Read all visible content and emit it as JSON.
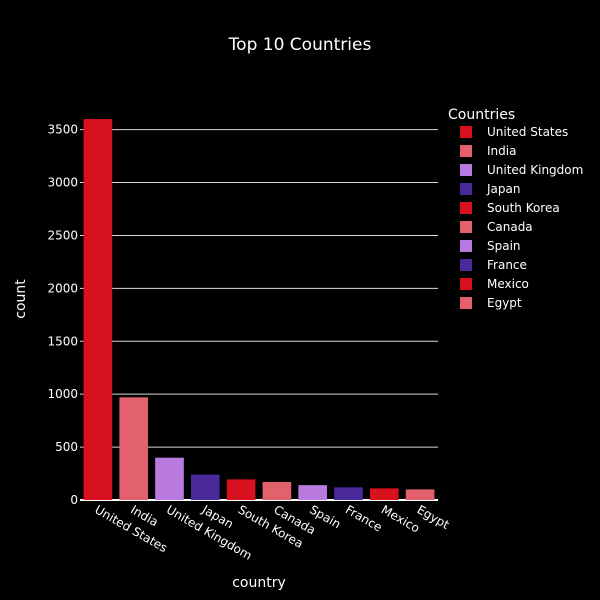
{
  "chart_data": {
    "type": "bar",
    "title": "Top 10 Countries",
    "xlabel": "country",
    "ylabel": "count",
    "categories": [
      "United States",
      "India",
      "United Kingdom",
      "Japan",
      "South Korea",
      "Canada",
      "Spain",
      "France",
      "Mexico",
      "Egypt"
    ],
    "values": [
      3600,
      970,
      400,
      240,
      195,
      170,
      140,
      120,
      110,
      100
    ],
    "ylim": [
      0,
      3780
    ],
    "yticks": [
      0,
      500,
      1000,
      1500,
      2000,
      2500,
      3000,
      3500
    ],
    "grid": true,
    "legend": {
      "title": "Countries",
      "placement": "top-right"
    },
    "colors": [
      "#d8111f",
      "#e2616c",
      "#b97ae0",
      "#4a2a9a",
      "#d8111f",
      "#e2616c",
      "#b97ae0",
      "#4a2a9a",
      "#d8111f",
      "#e2616c"
    ],
    "background": "#000000",
    "gridColor": "#ffffff"
  }
}
